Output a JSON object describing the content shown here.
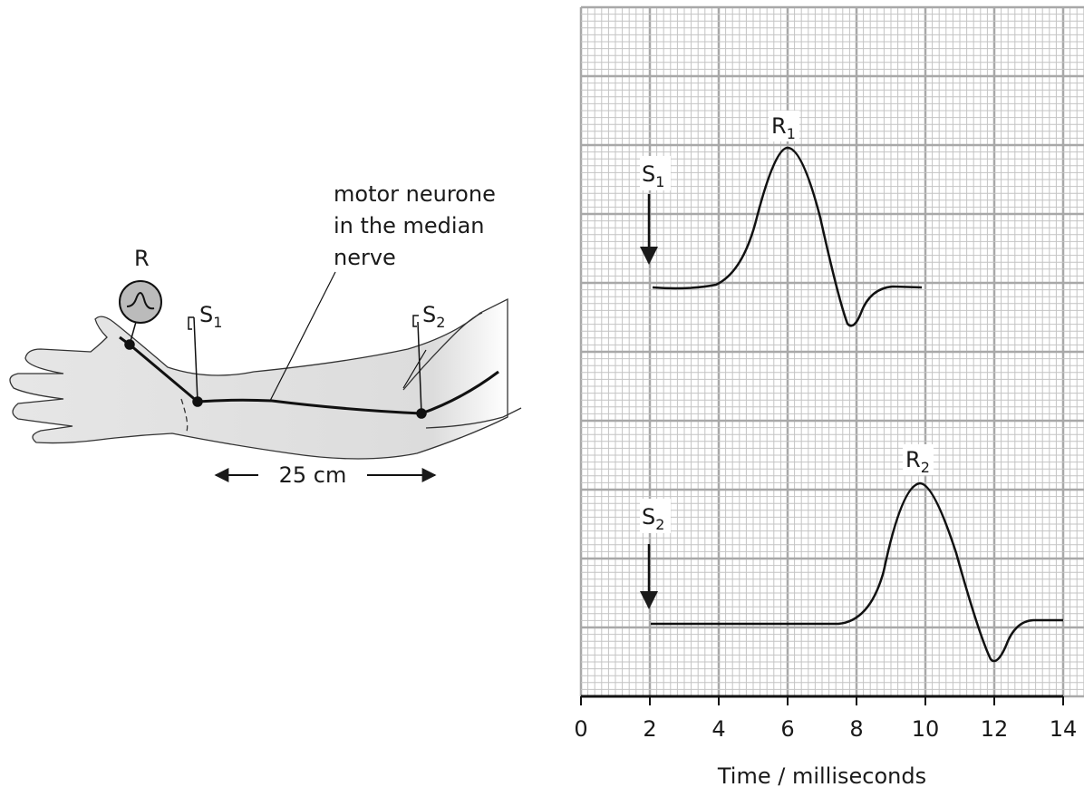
{
  "arm": {
    "recorder": "R",
    "s1": {
      "main": "S",
      "sub": "1"
    },
    "s2": {
      "main": "S",
      "sub": "2"
    },
    "nerve_label": [
      "motor neurone",
      "in the median",
      "nerve"
    ],
    "distance": "25 cm"
  },
  "graph": {
    "r1": {
      "main": "R",
      "sub": "1"
    },
    "r2": {
      "main": "R",
      "sub": "2"
    },
    "s1": {
      "main": "S",
      "sub": "1"
    },
    "s2": {
      "main": "S",
      "sub": "2"
    },
    "xticks": [
      0,
      2,
      4,
      6,
      8,
      10,
      12,
      14
    ],
    "xlabel": "Time / milliseconds"
  }
}
